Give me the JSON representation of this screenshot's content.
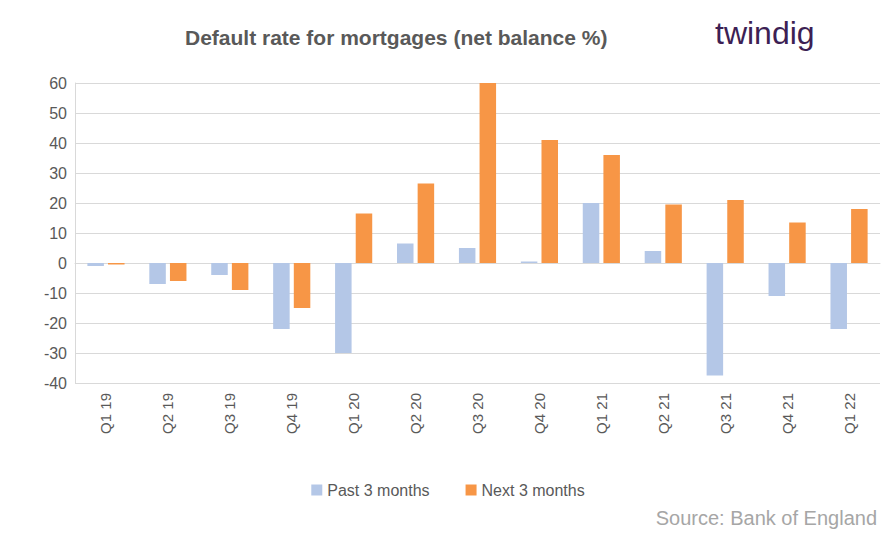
{
  "chart_data": {
    "type": "bar",
    "title": "Default rate for mortgages (net balance %)",
    "brand": "twindig",
    "source": "Source: Bank of England",
    "categories": [
      "Q1 19",
      "Q2 19",
      "Q3 19",
      "Q4 19",
      "Q1 20",
      "Q2 20",
      "Q3 20",
      "Q4 20",
      "Q1 21",
      "Q2 21",
      "Q3 21",
      "Q4 21",
      "Q1 22"
    ],
    "series": [
      {
        "name": "Past 3 months",
        "color": "#b4c7e7",
        "values": [
          -1,
          -7,
          -4,
          -22,
          -30,
          6.5,
          5,
          0.5,
          20,
          4,
          -37.5,
          -11,
          -22
        ]
      },
      {
        "name": "Next 3 months",
        "color": "#f79646",
        "values": [
          -0.5,
          -6,
          -9,
          -15,
          16.5,
          26.5,
          60,
          41,
          36,
          19.5,
          21,
          13.5,
          18
        ]
      }
    ],
    "ylim": [
      -40,
      60
    ],
    "yticks": [
      -40,
      -30,
      -20,
      -10,
      0,
      10,
      20,
      30,
      40,
      50,
      60
    ],
    "grid": true,
    "legend": "bottom"
  }
}
